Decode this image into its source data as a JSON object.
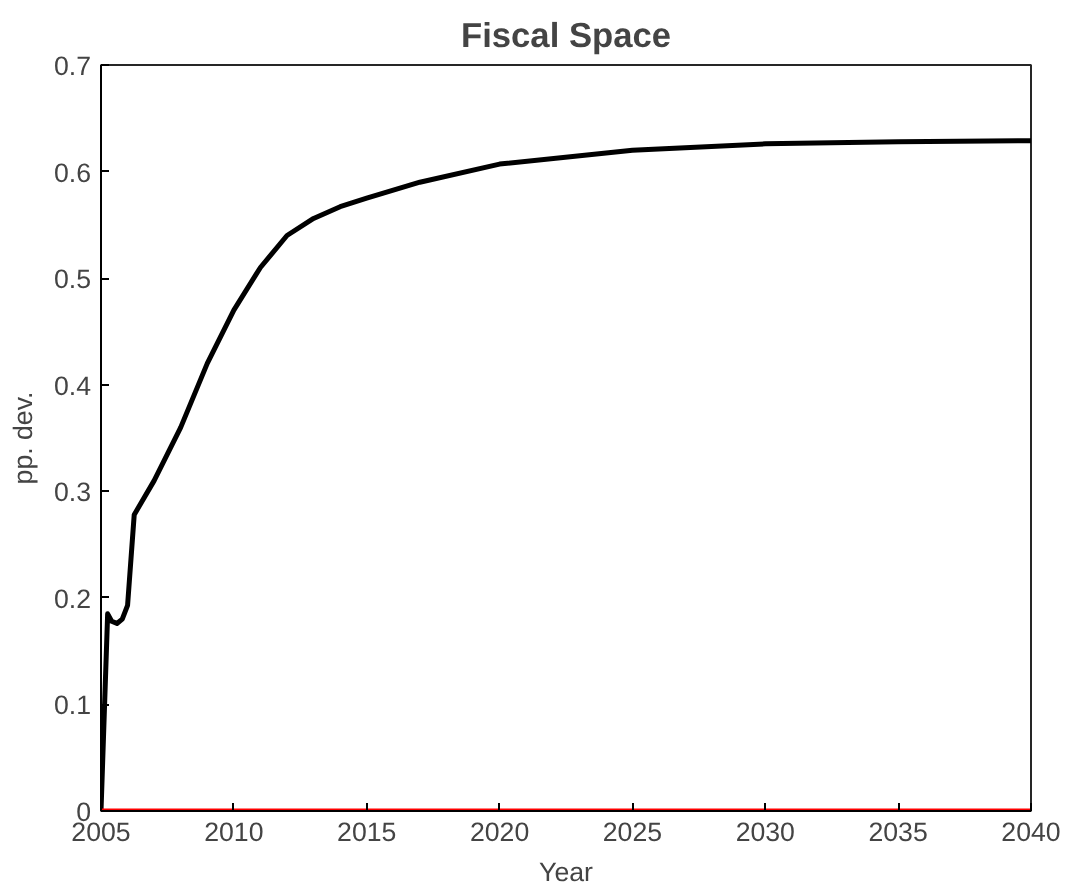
{
  "chart_data": {
    "type": "line",
    "title": "Fiscal Space",
    "xlabel": "Year",
    "ylabel": "pp. dev.",
    "xlim": [
      2005,
      2040
    ],
    "xticks": [
      2005,
      2010,
      2015,
      2020,
      2025,
      2030,
      2035,
      2040
    ],
    "ylim": [
      0,
      0.7
    ],
    "yticks": [
      0,
      0.1,
      0.2,
      0.3,
      0.4,
      0.5,
      0.6,
      0.7
    ],
    "grid": false,
    "series": [
      {
        "color": "#000000",
        "x": [
          2005,
          2005.25,
          2005.4,
          2005.6,
          2005.8,
          2006.0,
          2006.25,
          2007,
          2008,
          2009,
          2010,
          2011,
          2012,
          2013,
          2014,
          2015,
          2017,
          2020,
          2025,
          2030,
          2035,
          2040
        ],
        "values": [
          0,
          0.185,
          0.178,
          0.176,
          0.18,
          0.193,
          0.278,
          0.31,
          0.36,
          0.42,
          0.47,
          0.51,
          0.54,
          0.556,
          0.567,
          0.575,
          0.59,
          0.607,
          0.62,
          0.626,
          0.628,
          0.629
        ]
      },
      {
        "color": "#ff0000",
        "x": [
          2005,
          2040
        ],
        "values": [
          0,
          0
        ]
      }
    ]
  }
}
